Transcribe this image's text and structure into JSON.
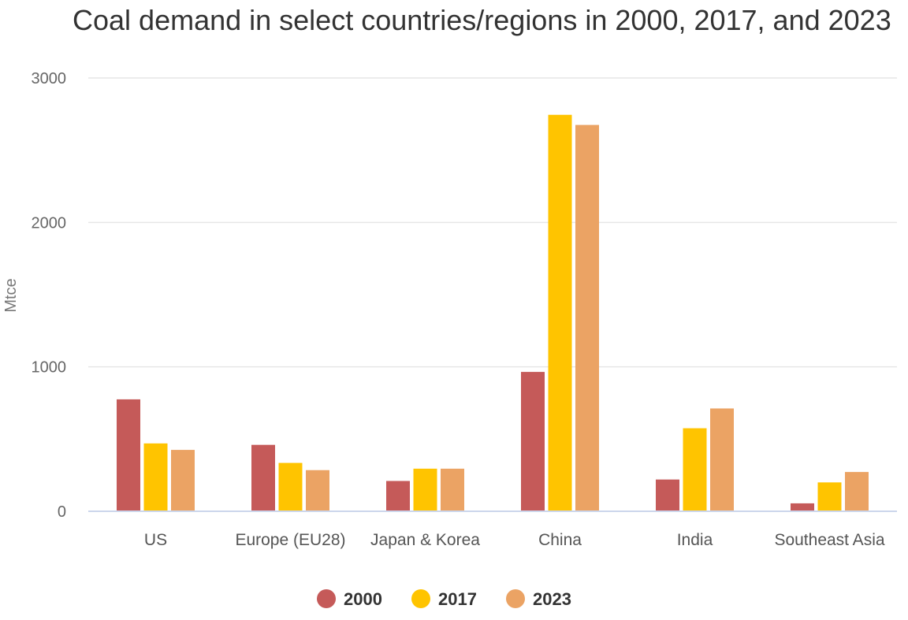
{
  "chart_data": {
    "type": "bar",
    "title": "Coal demand in select countries/regions in 2000, 2017, and 2023",
    "xlabel": "",
    "ylabel": "Mtce",
    "ylim": [
      0,
      3000
    ],
    "yticks": [
      0,
      1000,
      2000,
      3000
    ],
    "categories": [
      "US",
      "Europe (EU28)",
      "Japan & Korea",
      "China",
      "India",
      "Southeast Asia"
    ],
    "series": [
      {
        "name": "2000",
        "color": "#c55a59",
        "values": [
          775,
          460,
          210,
          965,
          220,
          55
        ]
      },
      {
        "name": "2017",
        "color": "#ffc400",
        "values": [
          470,
          335,
          295,
          2745,
          575,
          200
        ]
      },
      {
        "name": "2023",
        "color": "#eba364",
        "values": [
          425,
          285,
          295,
          2675,
          712,
          272
        ]
      }
    ],
    "grid": true,
    "legend": "bottom-center"
  }
}
